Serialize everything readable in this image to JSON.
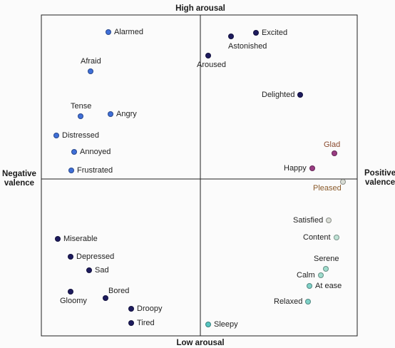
{
  "axes": {
    "top": "High arousal",
    "bottom": "Low arousal",
    "left_line1": "Negative",
    "left_line2": "valence",
    "right_line1": "Positive",
    "right_line2": "valence"
  },
  "colors": {
    "deep_navy": "#1d1b5e",
    "blue": "#3f6fd8",
    "magenta": "#9a3c83",
    "light_gray": "#d9ddd5",
    "mint": "#9fdccd",
    "teal": "#56c6c1",
    "glad_text": "#8a4a2e",
    "pleased_text": "#8a5a2a"
  },
  "emotions": [
    {
      "label": "Alarmed",
      "color": "#3f6fd8",
      "pos": "right"
    },
    {
      "label": "Afraid",
      "color": "#3f6fd8",
      "pos": "above"
    },
    {
      "label": "Tense",
      "color": "#3f6fd8",
      "pos": "above"
    },
    {
      "label": "Angry",
      "color": "#3f6fd8",
      "pos": "right"
    },
    {
      "label": "Distressed",
      "color": "#3f6fd8",
      "pos": "right"
    },
    {
      "label": "Annoyed",
      "color": "#3f6fd8",
      "pos": "right"
    },
    {
      "label": "Frustrated",
      "color": "#3f6fd8",
      "pos": "right"
    },
    {
      "label": "Excited",
      "color": "#1d1b5e",
      "pos": "right"
    },
    {
      "label": "Astonished",
      "color": "#1d1b5e",
      "pos": "below-right"
    },
    {
      "label": "Aroused",
      "color": "#1d1b5e",
      "pos": "below"
    },
    {
      "label": "Delighted",
      "color": "#1d1b5e",
      "pos": "left"
    },
    {
      "label": "Glad",
      "color": "#9a3c83",
      "pos": "above-left",
      "text_color": "#8a4a2e"
    },
    {
      "label": "Happy",
      "color": "#9a3c83",
      "pos": "left"
    },
    {
      "label": "Pleased",
      "color": "#d9ddd5",
      "pos": "below-left",
      "text_color": "#8a5a2a"
    },
    {
      "label": "Satisfied",
      "color": "#d9ddd5",
      "pos": "left"
    },
    {
      "label": "Content",
      "color": "#bfe3d6",
      "pos": "left"
    },
    {
      "label": "Serene",
      "color": "#9fdccd",
      "pos": "above"
    },
    {
      "label": "Calm",
      "color": "#9fdccd",
      "pos": "left"
    },
    {
      "label": "At ease",
      "color": "#7fd2c8",
      "pos": "right"
    },
    {
      "label": "Relaxed",
      "color": "#7fd2c8",
      "pos": "left"
    },
    {
      "label": "Sleepy",
      "color": "#56c6c1",
      "pos": "right"
    },
    {
      "label": "Miserable",
      "color": "#1d1b5e",
      "pos": "right"
    },
    {
      "label": "Depressed",
      "color": "#1d1b5e",
      "pos": "right"
    },
    {
      "label": "Sad",
      "color": "#1d1b5e",
      "pos": "right"
    },
    {
      "label": "Gloomy",
      "color": "#1d1b5e",
      "pos": "below"
    },
    {
      "label": "Bored",
      "color": "#1d1b5e",
      "pos": "above-right"
    },
    {
      "label": "Droopy",
      "color": "#1d1b5e",
      "pos": "right"
    },
    {
      "label": "Tired",
      "color": "#1d1b5e",
      "pos": "right"
    }
  ]
}
